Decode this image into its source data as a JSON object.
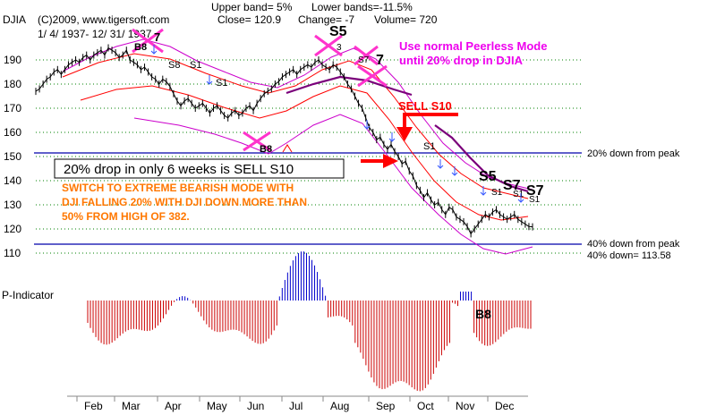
{
  "header": {
    "symbol": "DJIA",
    "site": "(C)2009, www.tigersoft.com",
    "close": "Close= 120.9",
    "change": "Change= -7",
    "volume": "Volume= 720",
    "upper_band": "Upper band= 5%",
    "lower_bands": "Lower bands=-11.5%",
    "date_range": "1/ 4/ 1937- 12/ 31/ 1937"
  },
  "annotations": {
    "peerless_line1": "Use normal Peerless Mode",
    "peerless_line2": "until 20% drop in DJIA",
    "sell_s10": "SELL S10",
    "box_text": "20% drop in only 6 weeks is SELL S10",
    "bearish_line1": "SWITCH TO EXTREME BEARISH MODE WITH",
    "bearish_line2": "DJI FALLING 20% WITH DJI DOWN MORE THAN",
    "bearish_line3": "50% FROM HIGH OF 382.",
    "down20": "20% down from peak",
    "down40": "40% down from peak",
    "down40_value": "40% down=  113.58",
    "p_indicator": "P-Indicator"
  },
  "signals": {
    "s5_top": "S5",
    "s5_small": "3",
    "s7_a": "7",
    "s7_b": "S7",
    "s8_apr": "S8",
    "s1_apr": "S1",
    "s1_may": "S1",
    "b8_jun": "B8",
    "s1_sep": "S1",
    "s5_dec": "S5",
    "s7_dec1": "S7",
    "s7_dec2": "S7",
    "s1_d1": "S1",
    "s1_d2": "S1",
    "s1_d3": "S1",
    "b8_nov": "B8",
    "b8_mar": "B8"
  },
  "colors": {
    "price": "#000000",
    "ma": "#ff0000",
    "band": "#cc00cc",
    "long_ma": "#7a007a",
    "cross": "#ff33cc",
    "arrow": "#ff0000",
    "magenta_text": "#ee00ee",
    "orange_text": "#ff7700",
    "blue_line": "#0000aa",
    "pos_bar": "#0000cc",
    "neg_bar": "#cc0000",
    "grid": "#008000"
  },
  "chart_data": {
    "type": "line",
    "ylim": [
      105,
      200
    ],
    "yticks": [
      110,
      120,
      130,
      140,
      150,
      160,
      170,
      180,
      190
    ],
    "months": [
      "Feb",
      "Mar",
      "Apr",
      "May",
      "Jun",
      "Jul",
      "Aug",
      "Sep",
      "Oct",
      "Nov",
      "Dec"
    ],
    "reference_lines": [
      151.4,
      113.58
    ],
    "series": [
      {
        "values": [
          177,
          178,
          180,
          182,
          183,
          185,
          186,
          184,
          186,
          188,
          189,
          190,
          189,
          191,
          192,
          190,
          192,
          193,
          194,
          192,
          195,
          194,
          193,
          191,
          192,
          194,
          190,
          189,
          188,
          186,
          187,
          185,
          183,
          182,
          180,
          182,
          181,
          179,
          176,
          173,
          171,
          173,
          174,
          172,
          170,
          171,
          172,
          170,
          168,
          170,
          171,
          169,
          167,
          166,
          168,
          169,
          167,
          168,
          170,
          171,
          169,
          172,
          174,
          176,
          177,
          178,
          180,
          181,
          183,
          184,
          185,
          186,
          184,
          186,
          187,
          188,
          187,
          189,
          190,
          188,
          187,
          186,
          188,
          187,
          185,
          183,
          180,
          178,
          175,
          172,
          170,
          166,
          162,
          160,
          157,
          158,
          155,
          153,
          155,
          152,
          150,
          147,
          148,
          144,
          142,
          138,
          136,
          133,
          135,
          132,
          130,
          131,
          128,
          126,
          129,
          128,
          125,
          124,
          123,
          121,
          118,
          120,
          122,
          124,
          126,
          125,
          127,
          128,
          126,
          125,
          124,
          125,
          126,
          124,
          123,
          122,
          121,
          120.9
        ]
      }
    ]
  }
}
